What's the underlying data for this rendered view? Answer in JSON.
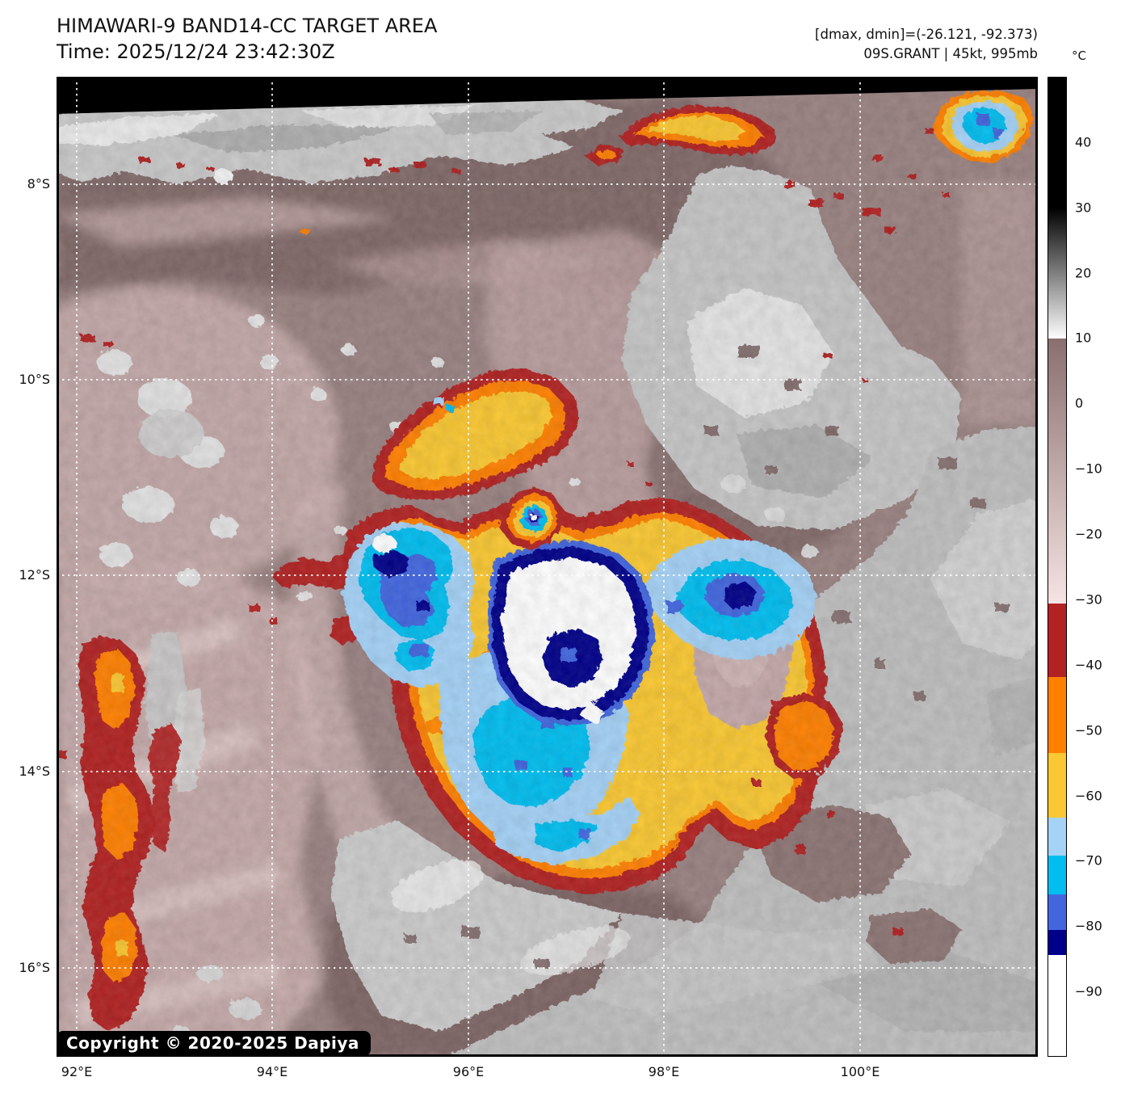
{
  "header": {
    "title": "HIMAWARI-9 BAND14-CC TARGET AREA",
    "time_line": "Time: 2025/12/24 23:42:30Z",
    "annotation_line1": "[dmax, dmin]=(-26.121, -92.373)",
    "annotation_line2": "09S.GRANT | 45kt, 995mb"
  },
  "copyright": "Copyright © 2020-2025 Dapiya",
  "axes": {
    "lat_labels": [
      "8°S",
      "10°S",
      "12°S",
      "14°S",
      "16°S"
    ],
    "lon_labels": [
      "92°E",
      "94°E",
      "96°E",
      "98°E",
      "100°E"
    ]
  },
  "chart_data": {
    "type": "heatmap",
    "title": "HIMAWARI-9 BAND14-CC TARGET AREA",
    "subtitle": "Time: 2025/12/24 23:42:30Z",
    "storm": {
      "id_name": "09S.GRANT",
      "intensity": "45kt",
      "pressure": "995mb"
    },
    "dmax_dmin": [
      -26.121,
      -92.373
    ],
    "xlabel": "",
    "ylabel": "",
    "x_ticks_lon_E": [
      92,
      94,
      96,
      98,
      100
    ],
    "y_ticks_lat_S": [
      8,
      10,
      12,
      14,
      16
    ],
    "lon_range_E": [
      91.8,
      101.9
    ],
    "lat_range_S": [
      6.9,
      16.9
    ],
    "grid": "white dotted lat/lon grid",
    "colorbar": {
      "unit": "°C",
      "range": [
        50,
        -100
      ],
      "ticks": [
        {
          "value": 40,
          "label": "40"
        },
        {
          "value": 30,
          "label": "30"
        },
        {
          "value": 20,
          "label": "20"
        },
        {
          "value": 10,
          "label": "10"
        },
        {
          "value": 0,
          "label": "0"
        },
        {
          "value": -10,
          "label": "−10"
        },
        {
          "value": -20,
          "label": "−20"
        },
        {
          "value": -30,
          "label": "−30"
        },
        {
          "value": -40,
          "label": "−40"
        },
        {
          "value": -50,
          "label": "−50"
        },
        {
          "value": -60,
          "label": "−60"
        },
        {
          "value": -70,
          "label": "−70"
        },
        {
          "value": -80,
          "label": "−80"
        },
        {
          "value": -90,
          "label": "−90"
        }
      ],
      "segments": [
        {
          "from": 50,
          "to": 30,
          "color": "#000000"
        },
        {
          "from": 30,
          "to": 10,
          "gradient": [
            "#000000",
            "#ffffff"
          ]
        },
        {
          "from": 10,
          "to": -30.6,
          "gradient": [
            "#8a6f6f",
            "#f6e3e3"
          ]
        },
        {
          "from": -30.6,
          "to": -41.9,
          "color": "#b22222"
        },
        {
          "from": -41.9,
          "to": -53.6,
          "color": "#ff8000"
        },
        {
          "from": -53.6,
          "to": -63.5,
          "color": "#fac832"
        },
        {
          "from": -63.5,
          "to": -69.3,
          "color": "#a5d2f7"
        },
        {
          "from": -69.3,
          "to": -75.2,
          "color": "#00bef0"
        },
        {
          "from": -75.2,
          "to": -80.7,
          "color": "#4366df"
        },
        {
          "from": -80.7,
          "to": -84.5,
          "color": "#00008b"
        },
        {
          "from": -84.5,
          "to": -100,
          "color": "#ffffff"
        }
      ]
    }
  }
}
